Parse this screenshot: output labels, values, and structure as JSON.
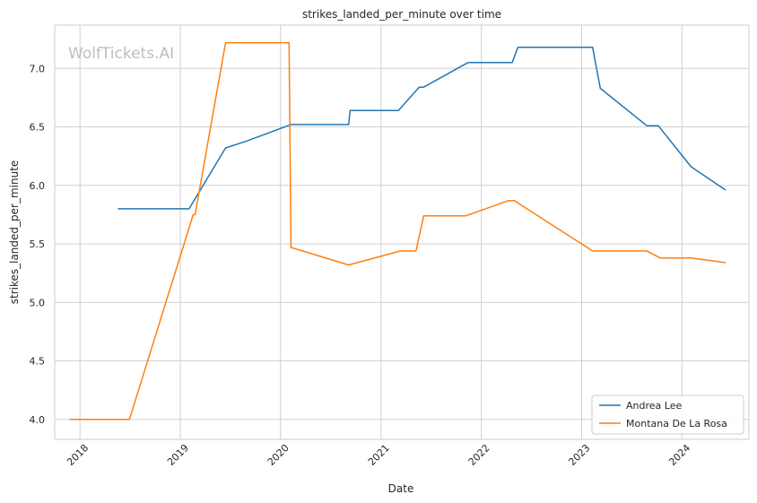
{
  "watermark": "WolfTickets.AI",
  "chart_data": {
    "type": "line",
    "title": "strikes_landed_per_minute over time",
    "xlabel": "Date",
    "ylabel": "strikes_landed_per_minute",
    "xlim": [
      "2017-10-01",
      "2024-09-01"
    ],
    "ylim": [
      3.83,
      7.37
    ],
    "x_ticks": [
      {
        "date": "2018-01-01",
        "label": "2018"
      },
      {
        "date": "2019-01-01",
        "label": "2019"
      },
      {
        "date": "2020-01-01",
        "label": "2020"
      },
      {
        "date": "2021-01-01",
        "label": "2021"
      },
      {
        "date": "2022-01-01",
        "label": "2022"
      },
      {
        "date": "2023-01-01",
        "label": "2023"
      },
      {
        "date": "2024-01-01",
        "label": "2024"
      }
    ],
    "y_ticks": [
      {
        "value": 4.0,
        "label": "4.0"
      },
      {
        "value": 4.5,
        "label": "4.5"
      },
      {
        "value": 5.0,
        "label": "5.0"
      },
      {
        "value": 5.5,
        "label": "5.5"
      },
      {
        "value": 6.0,
        "label": "6.0"
      },
      {
        "value": 6.5,
        "label": "6.5"
      },
      {
        "value": 7.0,
        "label": "7.0"
      }
    ],
    "grid": true,
    "legend_position": "lower-right",
    "series": [
      {
        "name": "Andrea Lee",
        "color": "#1f77b4",
        "points": [
          [
            "2018-05-19",
            5.8
          ],
          [
            "2019-02-02",
            5.8
          ],
          [
            "2019-06-15",
            6.32
          ],
          [
            "2019-09-01",
            6.38
          ],
          [
            "2020-02-08",
            6.52
          ],
          [
            "2020-09-05",
            6.52
          ],
          [
            "2020-09-10",
            6.64
          ],
          [
            "2021-03-05",
            6.64
          ],
          [
            "2021-05-20",
            6.84
          ],
          [
            "2021-06-05",
            6.84
          ],
          [
            "2021-11-13",
            7.05
          ],
          [
            "2022-04-23",
            7.05
          ],
          [
            "2022-05-14",
            7.18
          ],
          [
            "2023-02-10",
            7.18
          ],
          [
            "2023-03-10",
            6.83
          ],
          [
            "2023-08-26",
            6.51
          ],
          [
            "2023-10-07",
            6.51
          ],
          [
            "2024-02-03",
            6.16
          ],
          [
            "2024-06-08",
            5.96
          ]
        ]
      },
      {
        "name": "Montana De La Rosa",
        "color": "#ff7f0e",
        "points": [
          [
            "2017-11-25",
            4.0
          ],
          [
            "2018-06-30",
            4.0
          ],
          [
            "2019-02-17",
            5.75
          ],
          [
            "2019-02-24",
            5.75
          ],
          [
            "2019-06-15",
            7.22
          ],
          [
            "2020-02-01",
            7.22
          ],
          [
            "2020-02-08",
            5.47
          ],
          [
            "2020-09-05",
            5.32
          ],
          [
            "2021-03-13",
            5.44
          ],
          [
            "2021-05-08",
            5.44
          ],
          [
            "2021-06-05",
            5.74
          ],
          [
            "2021-11-06",
            5.74
          ],
          [
            "2022-04-09",
            5.87
          ],
          [
            "2022-05-01",
            5.87
          ],
          [
            "2023-02-10",
            5.44
          ],
          [
            "2023-08-26",
            5.44
          ],
          [
            "2023-10-14",
            5.38
          ],
          [
            "2024-02-03",
            5.38
          ],
          [
            "2024-06-08",
            5.34
          ]
        ]
      }
    ]
  }
}
